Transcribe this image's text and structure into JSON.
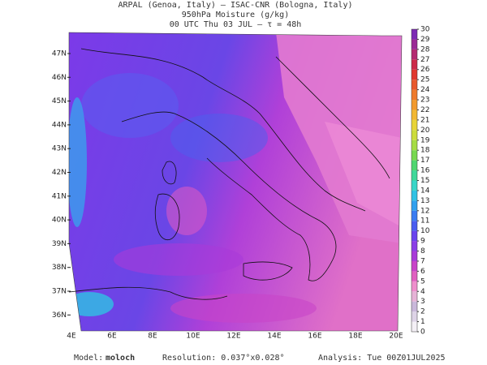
{
  "header": {
    "line1": "ARPAL (Genoa, Italy)  —  ISAC-CNR (Bologna, Italy)",
    "line2": "950hPa Moisture (g/kg)",
    "line3": "00 UTC Thu 03 JUL  —  τ = 48h"
  },
  "map": {
    "lat_labels": [
      "47N",
      "46N",
      "45N",
      "44N",
      "43N",
      "42N",
      "41N",
      "40N",
      "39N",
      "38N",
      "37N",
      "36N"
    ],
    "lon_labels": [
      "4E",
      "6E",
      "8E",
      "10E",
      "12E",
      "14E",
      "16E",
      "18E",
      "20E"
    ]
  },
  "colorbar": {
    "ticks": [
      0,
      1,
      2,
      3,
      4,
      5,
      6,
      7,
      8,
      9,
      10,
      11,
      12,
      13,
      14,
      15,
      16,
      17,
      18,
      19,
      20,
      21,
      22,
      23,
      24,
      25,
      26,
      27,
      28,
      29,
      30
    ],
    "colors": [
      "#f4f0f6",
      "#ddd3e6",
      "#c9b8da",
      "#e6b3d6",
      "#ee8fcc",
      "#e060c0",
      "#c844c8",
      "#a83ad8",
      "#8a3ee6",
      "#6a44ee",
      "#4a5cf0",
      "#3a7cf2",
      "#30a0ee",
      "#30c2e4",
      "#3ad6c8",
      "#40d89a",
      "#50d670",
      "#78d850",
      "#a6dc44",
      "#ccdc3c",
      "#e8d438",
      "#f2b832",
      "#f29a2e",
      "#ee7a2c",
      "#e8582c",
      "#e0382e",
      "#cc2a48",
      "#b42a70",
      "#9a2a96",
      "#7c2ab4"
    ]
  },
  "footer": {
    "model_label": "Model:",
    "model": "moloch",
    "resolution": "Resolution: 0.037°x0.028°",
    "analysis": "Analysis: Tue 00Z01JUL2025"
  }
}
